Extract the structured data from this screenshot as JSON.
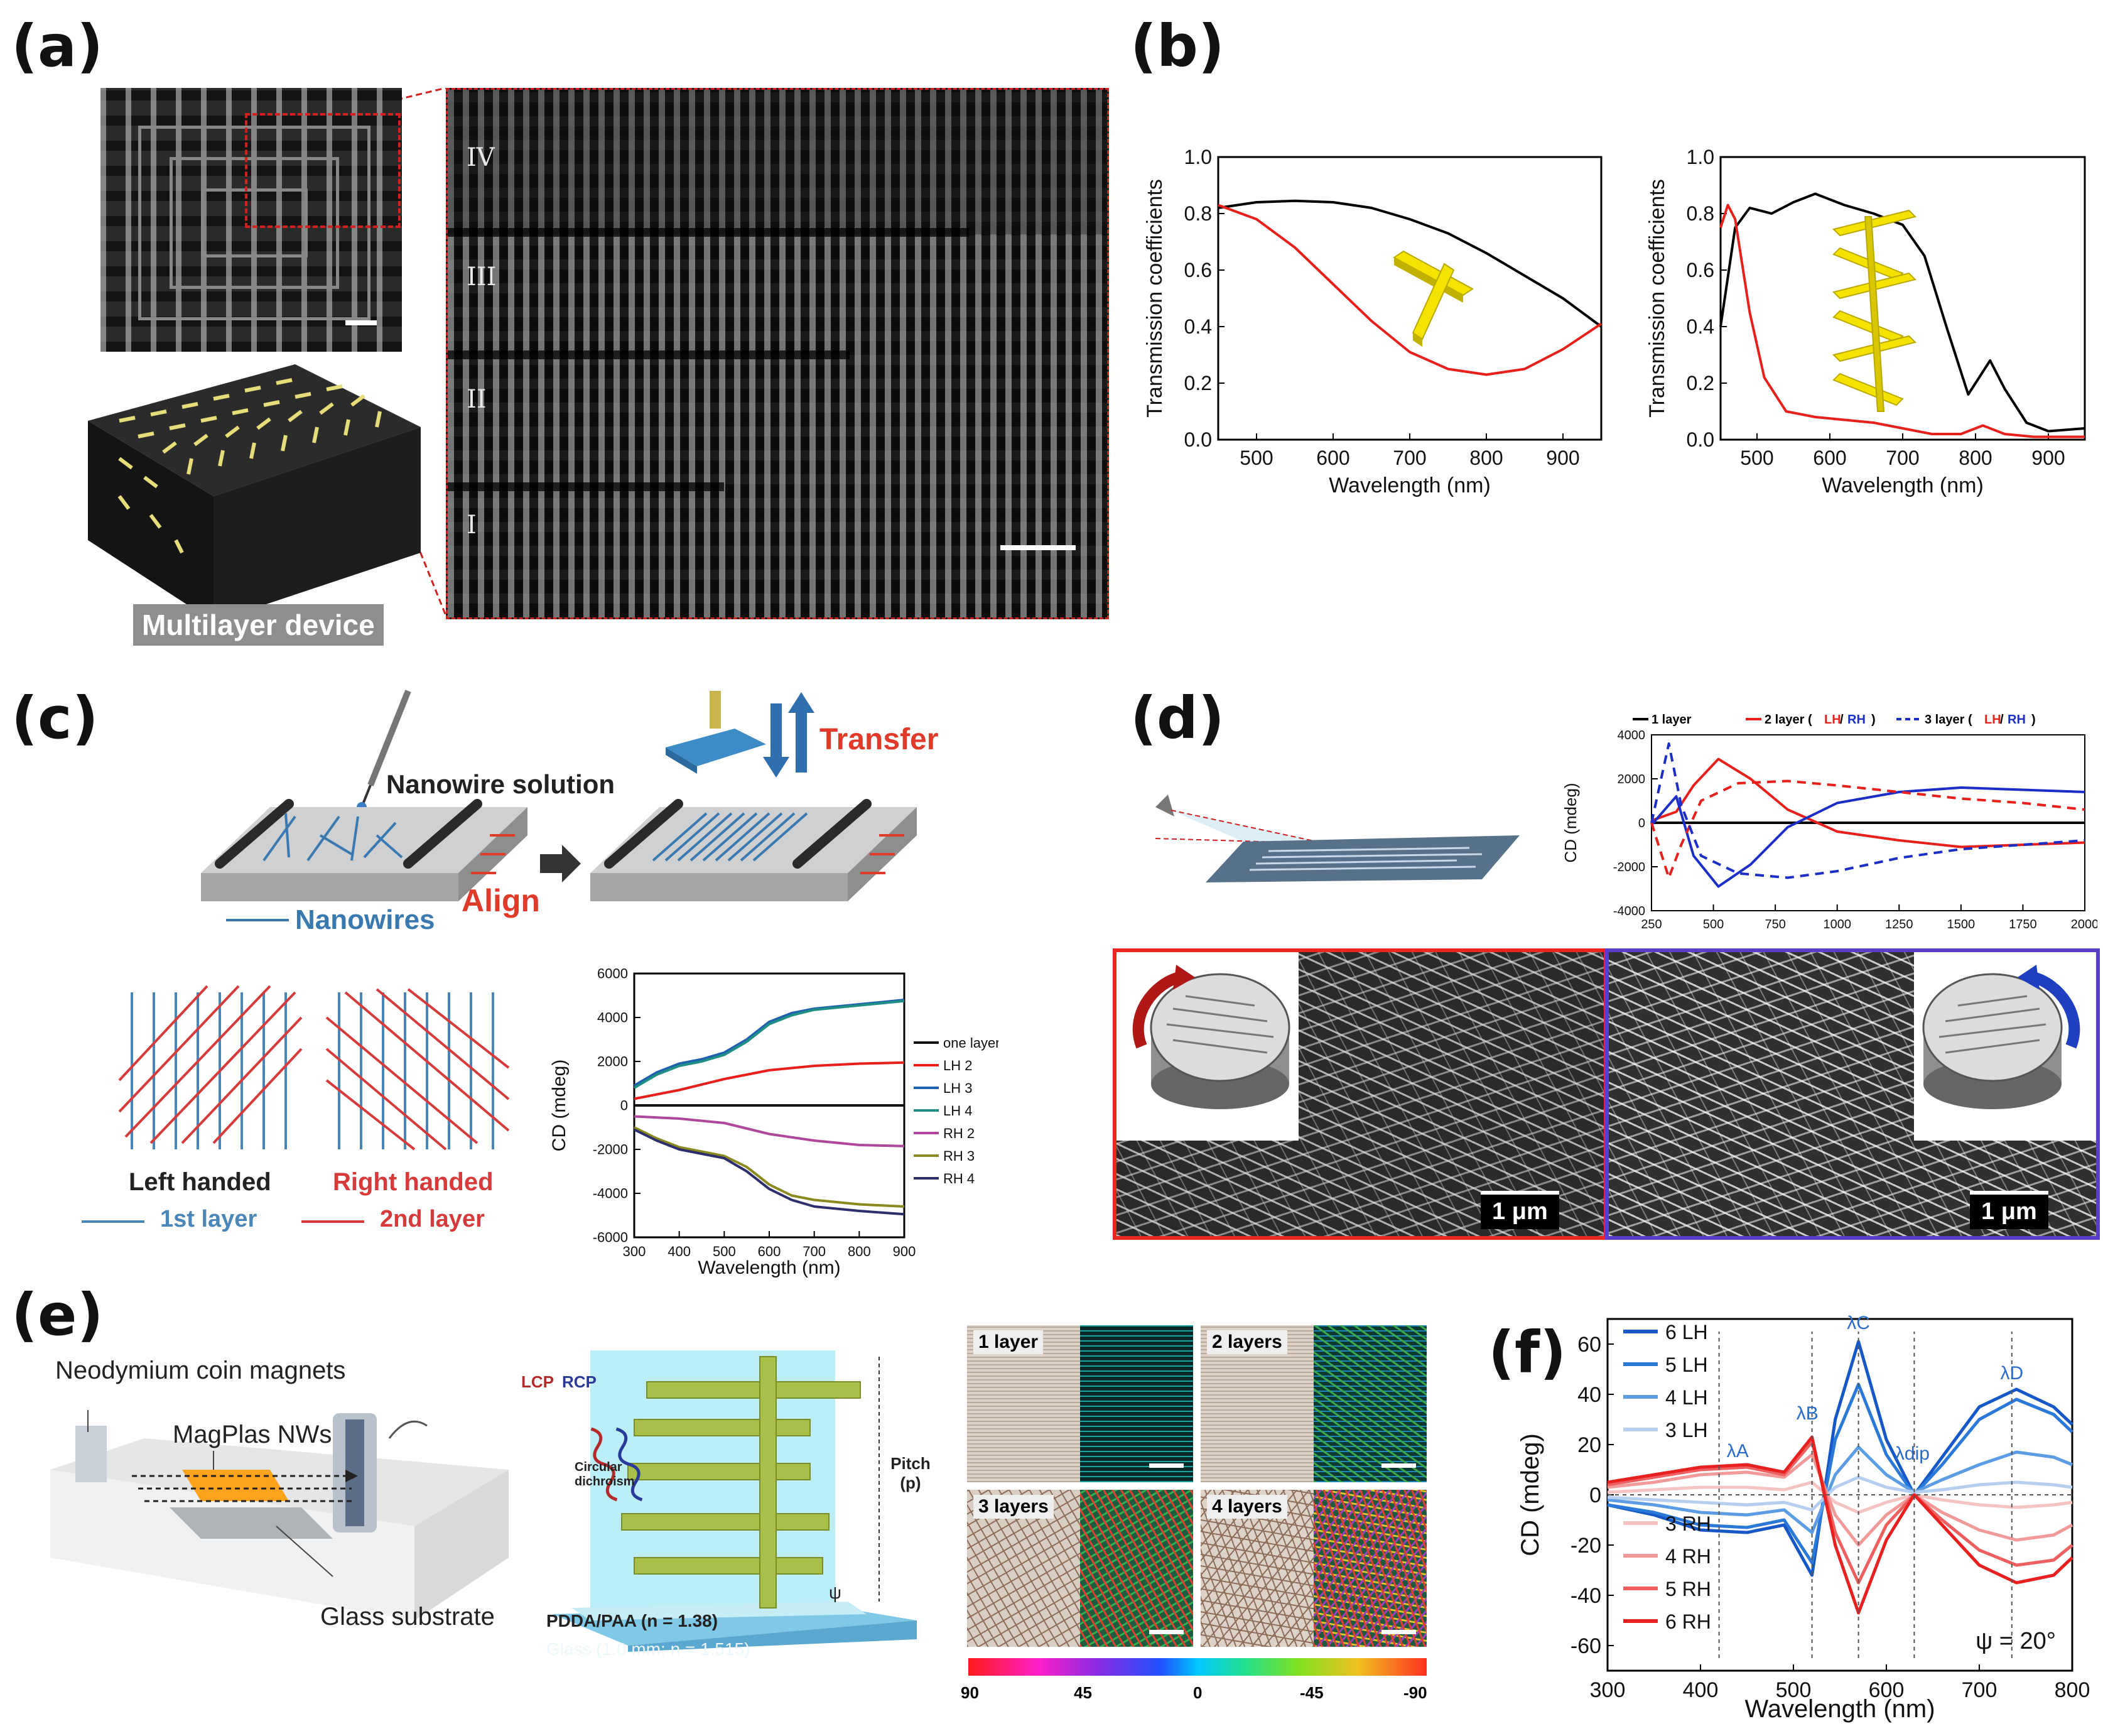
{
  "panels": {
    "a": "(a)",
    "b": "(b)",
    "c": "(c)",
    "d": "(d)",
    "e": "(e)",
    "f": "(f)"
  },
  "panel_a": {
    "roman_labels": [
      "IV",
      "III",
      "II",
      "I"
    ],
    "device_caption": "Multilayer device"
  },
  "panel_c": {
    "nanowire_solution": "Nanowire solution",
    "transfer": "Transfer",
    "align": "Align",
    "nanowires": "Nanowires",
    "left_handed": "Left handed",
    "right_handed": "Right handed",
    "layer1": "1st layer",
    "layer2": "2nd layer",
    "colors": {
      "blue": "#4a86b8",
      "red": "#d63a3a"
    }
  },
  "panel_d": {
    "scale1": "1 μm",
    "scale2": "1 μm",
    "frame_left": "#e8281f",
    "frame_right": "#5a3dc8"
  },
  "panel_e": {
    "magnets": "Neodymium coin magnets",
    "nws": "MagPlas NWs",
    "substrate": "Glass substrate",
    "lcp": "LCP",
    "rcp": "RCP",
    "circ": "Circular dichroism",
    "pitch": "Pitch (p)",
    "psi": "ψ",
    "pdda": "PDDA/PAA (n = 1.38)",
    "glass": "Glass (1.0 mm; n = 1.515)",
    "micro_labels": [
      "1 layer",
      "2 layers",
      "3 layers",
      "4 layers"
    ],
    "colorbar_ticks": [
      "90",
      "45",
      "0",
      "-45",
      "-90"
    ]
  },
  "chart_data": [
    {
      "id": "b-left",
      "type": "line",
      "xlabel": "Wavelength (nm)",
      "ylabel": "Transmission coefficients",
      "xlim": [
        450,
        950
      ],
      "ylim": [
        0,
        1.0
      ],
      "xticks": [
        "500",
        "600",
        "700",
        "800",
        "900"
      ],
      "yticks": [
        "0.0",
        "0.2",
        "0.4",
        "0.6",
        "0.8",
        "1.0"
      ],
      "series": [
        {
          "name": "black",
          "color": "#000000",
          "x": [
            450,
            500,
            550,
            600,
            650,
            700,
            750,
            800,
            850,
            900,
            950
          ],
          "y": [
            0.82,
            0.84,
            0.845,
            0.84,
            0.82,
            0.78,
            0.73,
            0.66,
            0.58,
            0.5,
            0.4
          ]
        },
        {
          "name": "red",
          "color": "#e8201c",
          "x": [
            450,
            500,
            550,
            600,
            650,
            700,
            750,
            800,
            850,
            900,
            950
          ],
          "y": [
            0.83,
            0.78,
            0.68,
            0.55,
            0.42,
            0.31,
            0.25,
            0.23,
            0.25,
            0.32,
            0.41
          ]
        }
      ]
    },
    {
      "id": "b-right",
      "type": "line",
      "xlabel": "Wavelength (nm)",
      "ylabel": "Transmission coefficients",
      "xlim": [
        450,
        950
      ],
      "ylim": [
        0,
        1.0
      ],
      "xticks": [
        "500",
        "600",
        "700",
        "800",
        "900"
      ],
      "yticks": [
        "0.0",
        "0.2",
        "0.4",
        "0.6",
        "0.8",
        "1.0"
      ],
      "series": [
        {
          "name": "black",
          "color": "#000000",
          "x": [
            450,
            470,
            490,
            520,
            550,
            580,
            620,
            660,
            700,
            730,
            760,
            790,
            805,
            820,
            840,
            870,
            900,
            950
          ],
          "y": [
            0.4,
            0.75,
            0.82,
            0.8,
            0.84,
            0.87,
            0.83,
            0.8,
            0.76,
            0.65,
            0.4,
            0.16,
            0.22,
            0.28,
            0.18,
            0.06,
            0.03,
            0.04
          ]
        },
        {
          "name": "red",
          "color": "#e8201c",
          "x": [
            450,
            460,
            470,
            490,
            510,
            540,
            580,
            620,
            660,
            700,
            740,
            780,
            810,
            840,
            880,
            950
          ],
          "y": [
            0.75,
            0.83,
            0.78,
            0.45,
            0.22,
            0.1,
            0.08,
            0.07,
            0.06,
            0.04,
            0.02,
            0.02,
            0.05,
            0.02,
            0.01,
            0.01
          ]
        }
      ]
    },
    {
      "id": "c",
      "type": "line",
      "xlabel": "Wavelength (nm)",
      "ylabel": "CD (mdeg)",
      "xlim": [
        300,
        900
      ],
      "ylim": [
        -6000,
        6000
      ],
      "xticks": [
        "300",
        "400",
        "500",
        "600",
        "700",
        "800",
        "900"
      ],
      "yticks": [
        "-6000",
        "-4000",
        "-2000",
        "0",
        "2000",
        "4000",
        "6000"
      ],
      "series": [
        {
          "name": "one layer",
          "color": "#111111",
          "x": [
            300,
            400,
            500,
            600,
            700,
            800,
            900
          ],
          "y": [
            0,
            0,
            0,
            0,
            0,
            0,
            0
          ]
        },
        {
          "name": "LH 2",
          "color": "#e8201c",
          "x": [
            300,
            400,
            500,
            600,
            700,
            800,
            900
          ],
          "y": [
            300,
            700,
            1200,
            1600,
            1800,
            1900,
            1950
          ]
        },
        {
          "name": "LH 3",
          "color": "#1f5fb0",
          "x": [
            300,
            350,
            400,
            450,
            500,
            550,
            600,
            650,
            700,
            800,
            900
          ],
          "y": [
            900,
            1500,
            1900,
            2100,
            2400,
            3000,
            3800,
            4200,
            4400,
            4600,
            4800
          ]
        },
        {
          "name": "LH 4",
          "color": "#1f8f86",
          "x": [
            300,
            350,
            400,
            450,
            500,
            550,
            600,
            650,
            700,
            800,
            900
          ],
          "y": [
            800,
            1400,
            1800,
            2000,
            2300,
            2900,
            3700,
            4100,
            4350,
            4550,
            4750
          ]
        },
        {
          "name": "RH 2",
          "color": "#b0479c",
          "x": [
            300,
            400,
            500,
            600,
            700,
            800,
            900
          ],
          "y": [
            -500,
            -600,
            -800,
            -1300,
            -1600,
            -1800,
            -1850
          ]
        },
        {
          "name": "RH 3",
          "color": "#8a8a1f",
          "x": [
            300,
            350,
            400,
            450,
            500,
            550,
            600,
            650,
            700,
            800,
            900
          ],
          "y": [
            -1000,
            -1500,
            -1900,
            -2100,
            -2300,
            -2800,
            -3600,
            -4100,
            -4300,
            -4500,
            -4600
          ]
        },
        {
          "name": "RH 4",
          "color": "#2c2f6b",
          "x": [
            300,
            350,
            400,
            450,
            500,
            550,
            600,
            650,
            700,
            800,
            900
          ],
          "y": [
            -1100,
            -1600,
            -2000,
            -2200,
            -2400,
            -3000,
            -3800,
            -4300,
            -4600,
            -4800,
            -4950
          ]
        }
      ]
    },
    {
      "id": "d",
      "type": "line",
      "xlabel": "",
      "ylabel": "CD (mdeg)",
      "xlim": [
        250,
        2000
      ],
      "ylim": [
        -4000,
        4000
      ],
      "xticks": [
        "250",
        "500",
        "750",
        "1000",
        "1250",
        "1500",
        "1750",
        "2000"
      ],
      "yticks": [
        "-4000",
        "-2000",
        "0",
        "2000",
        "4000"
      ],
      "legend": [
        "1 layer",
        "2 layer (",
        "LH",
        "/",
        "RH",
        ")",
        "3 layer (",
        "LH",
        "/",
        "RH",
        ")"
      ],
      "series": [
        {
          "name": "1 layer",
          "color": "#000000",
          "dash": false,
          "x": [
            250,
            500,
            1000,
            1500,
            2000
          ],
          "y": [
            0,
            0,
            0,
            0,
            0
          ]
        },
        {
          "name": "2 layer LH",
          "color": "#e8201c",
          "dash": false,
          "x": [
            250,
            350,
            420,
            520,
            650,
            800,
            1000,
            1250,
            1500,
            1750,
            2000
          ],
          "y": [
            100,
            500,
            1700,
            2900,
            2000,
            600,
            -400,
            -800,
            -1100,
            -1000,
            -900
          ]
        },
        {
          "name": "2 layer RH",
          "color": "#1b2ec8",
          "dash": false,
          "x": [
            250,
            350,
            420,
            520,
            650,
            800,
            1000,
            1250,
            1500,
            1750,
            2000
          ],
          "y": [
            -100,
            1200,
            -1500,
            -2900,
            -1900,
            -200,
            900,
            1400,
            1600,
            1500,
            1400
          ]
        },
        {
          "name": "3 layer LH",
          "color": "#e8201c",
          "dash": true,
          "x": [
            250,
            320,
            370,
            450,
            600,
            800,
            1000,
            1250,
            1500,
            1750,
            2000
          ],
          "y": [
            0,
            -2500,
            -1000,
            1000,
            1800,
            1900,
            1700,
            1400,
            1100,
            900,
            600
          ]
        },
        {
          "name": "3 layer RH",
          "color": "#1b2ec8",
          "dash": true,
          "x": [
            250,
            320,
            370,
            450,
            600,
            800,
            1000,
            1250,
            1500,
            1750,
            2000
          ],
          "y": [
            0,
            3600,
            800,
            -1500,
            -2300,
            -2500,
            -2200,
            -1600,
            -1200,
            -1000,
            -800
          ]
        }
      ]
    },
    {
      "id": "f",
      "type": "line",
      "xlabel": "Wavelength (nm)",
      "ylabel": "CD (mdeg)",
      "xlim": [
        300,
        800
      ],
      "ylim": [
        -70,
        70
      ],
      "xticks": [
        "300",
        "400",
        "500",
        "600",
        "700",
        "800"
      ],
      "yticks": [
        "-60",
        "-40",
        "-20",
        "0",
        "20",
        "40",
        "60"
      ],
      "annotation": "ψ = 20°",
      "lambda_labels": [
        "λA",
        "λB",
        "λC",
        "λdip",
        "λD"
      ],
      "series": [
        {
          "name": "6 LH",
          "color": "#1658c8",
          "x": [
            300,
            350,
            400,
            450,
            490,
            520,
            545,
            570,
            600,
            630,
            660,
            700,
            740,
            780,
            800
          ],
          "y": [
            -4,
            -8,
            -14,
            -15,
            -12,
            -32,
            30,
            61,
            22,
            0,
            15,
            35,
            42,
            35,
            28
          ]
        },
        {
          "name": "5 LH",
          "color": "#2a78d8",
          "x": [
            300,
            350,
            400,
            450,
            490,
            520,
            545,
            570,
            600,
            630,
            660,
            700,
            740,
            780,
            800
          ],
          "y": [
            -4,
            -7,
            -12,
            -13,
            -10,
            -27,
            22,
            44,
            16,
            0,
            12,
            30,
            38,
            32,
            25
          ]
        },
        {
          "name": "4 LH",
          "color": "#5b9ce4",
          "x": [
            300,
            350,
            400,
            450,
            490,
            520,
            545,
            570,
            600,
            630,
            660,
            700,
            740,
            780,
            800
          ],
          "y": [
            -2,
            -4,
            -7,
            -8,
            -6,
            -15,
            8,
            19,
            8,
            1,
            6,
            12,
            17,
            15,
            12
          ]
        },
        {
          "name": "3 LH",
          "color": "#b6cff0",
          "x": [
            300,
            350,
            400,
            450,
            490,
            520,
            545,
            570,
            600,
            630,
            660,
            700,
            740,
            780,
            800
          ],
          "y": [
            -1,
            -2,
            -3,
            -4,
            -3,
            -6,
            3,
            7,
            3,
            1,
            2,
            4,
            5,
            4,
            3
          ]
        },
        {
          "name": "3 RH",
          "color": "#f6c3c3",
          "x": [
            300,
            350,
            400,
            450,
            490,
            520,
            545,
            570,
            600,
            630,
            660,
            700,
            740,
            780,
            800
          ],
          "y": [
            1,
            2,
            3,
            3,
            2,
            5,
            -3,
            -7,
            -3,
            0,
            -2,
            -4,
            -5,
            -4,
            -3
          ]
        },
        {
          "name": "4 RH",
          "color": "#f29a9a",
          "x": [
            300,
            350,
            400,
            450,
            490,
            520,
            545,
            570,
            600,
            630,
            660,
            700,
            740,
            780,
            800
          ],
          "y": [
            3,
            5,
            8,
            9,
            7,
            16,
            -8,
            -20,
            -8,
            0,
            -7,
            -14,
            -18,
            -16,
            -12
          ]
        },
        {
          "name": "5 RH",
          "color": "#ee6060",
          "x": [
            300,
            350,
            400,
            450,
            490,
            520,
            545,
            570,
            600,
            630,
            660,
            700,
            740,
            780,
            800
          ],
          "y": [
            4,
            7,
            10,
            11,
            8,
            21,
            -15,
            -35,
            -12,
            0,
            -10,
            -22,
            -28,
            -26,
            -20
          ]
        },
        {
          "name": "6 RH",
          "color": "#e82020",
          "x": [
            300,
            350,
            400,
            450,
            490,
            520,
            545,
            570,
            600,
            630,
            660,
            700,
            740,
            780,
            800
          ],
          "y": [
            5,
            8,
            11,
            12,
            9,
            23,
            -20,
            -47,
            -18,
            0,
            -12,
            -28,
            -35,
            -32,
            -25
          ]
        }
      ]
    }
  ]
}
